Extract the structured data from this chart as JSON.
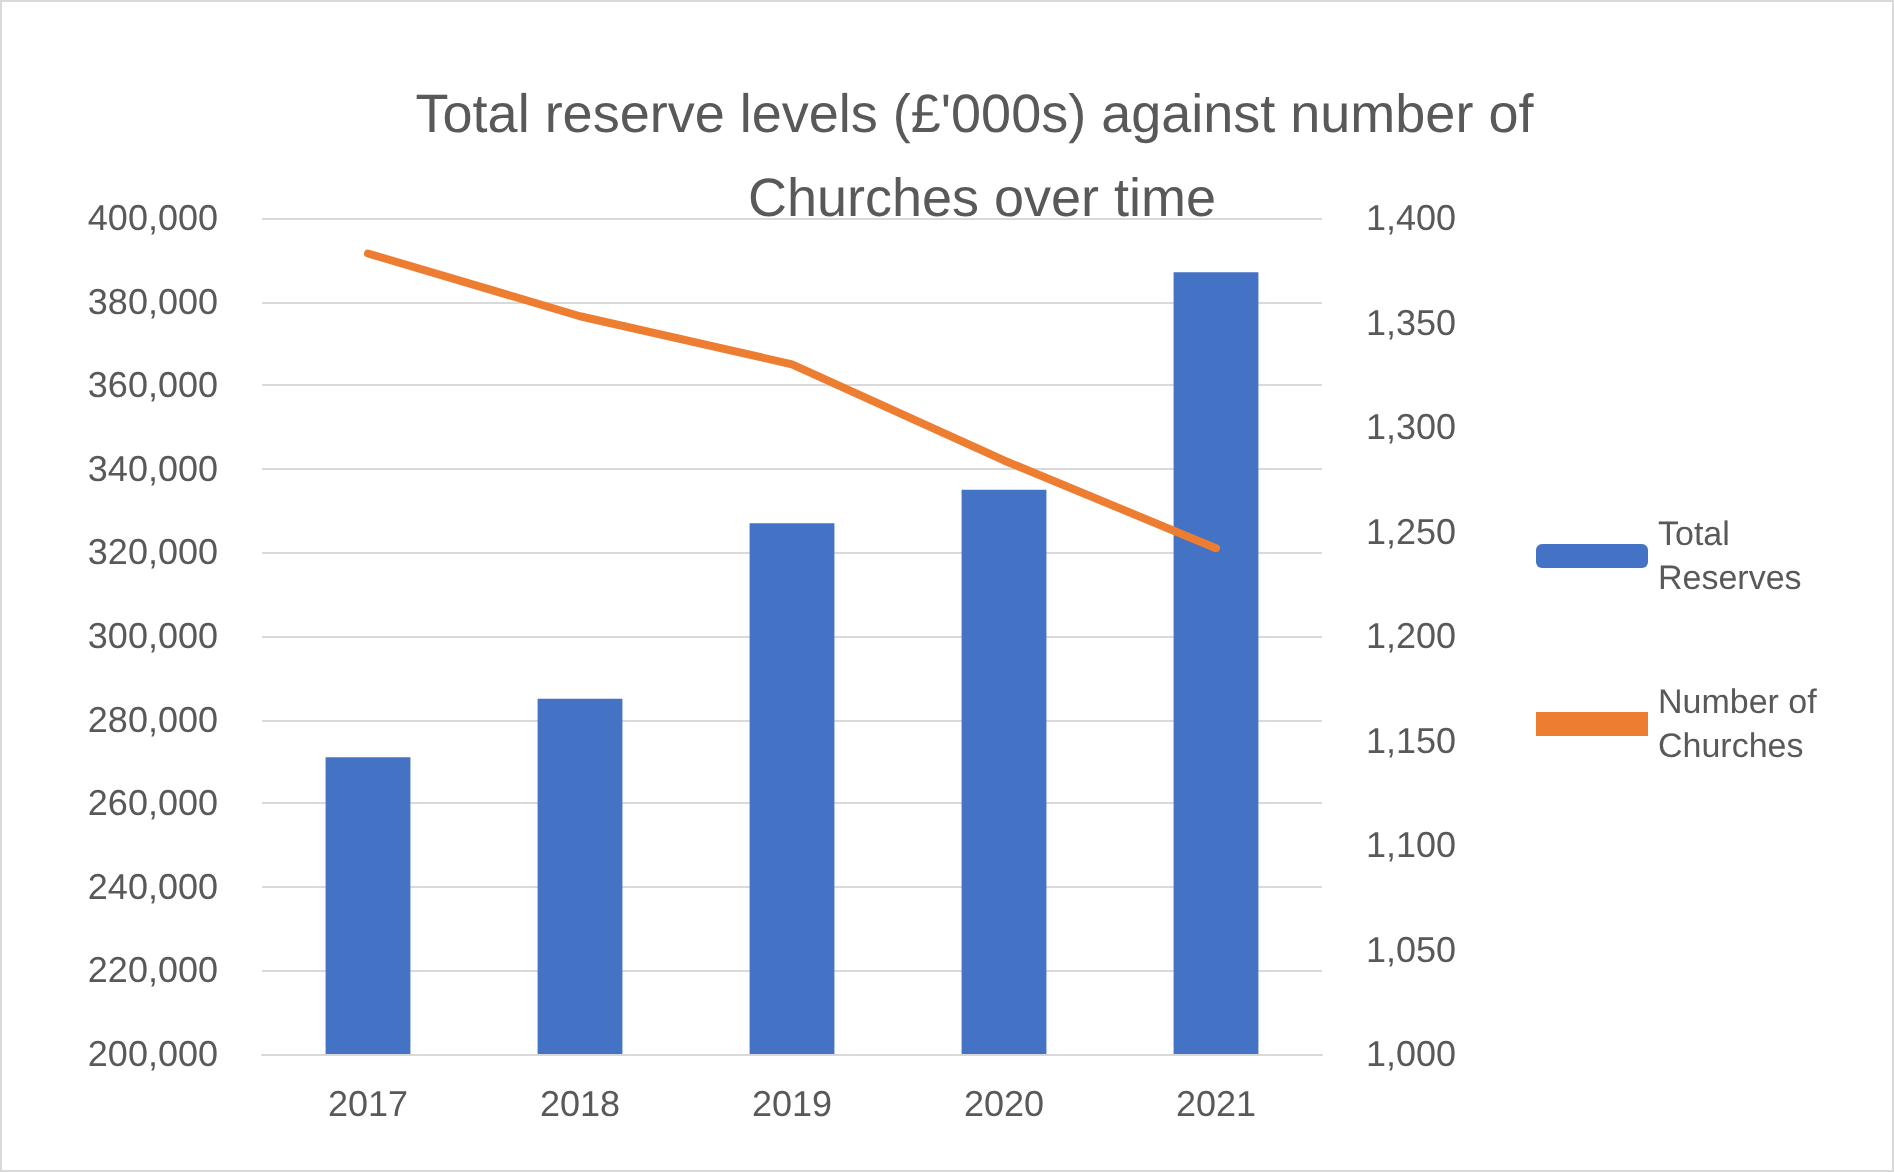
{
  "chart_data": {
    "type": "bar",
    "title": "Total reserve levels (£'000s) against number of Churches over time",
    "categories": [
      "2017",
      "2018",
      "2019",
      "2020",
      "2021"
    ],
    "series": [
      {
        "name": "Total Reserves",
        "color": "#4472c4",
        "values": [
          271000,
          285000,
          327000,
          335000,
          387000
        ]
      },
      {
        "name": "Number of Churches",
        "type": "line",
        "axis": "y2",
        "color": "#ed7d31",
        "values": [
          1383,
          1353,
          1330,
          1284,
          1242
        ]
      }
    ],
    "ylim": [
      200000,
      400000
    ],
    "yticks": [
      {
        "value": 200000,
        "label": "200,000"
      },
      {
        "value": 220000,
        "label": "220,000"
      },
      {
        "value": 240000,
        "label": "240,000"
      },
      {
        "value": 260000,
        "label": "260,000"
      },
      {
        "value": 280000,
        "label": "280,000"
      },
      {
        "value": 300000,
        "label": "300,000"
      },
      {
        "value": 320000,
        "label": "320,000"
      },
      {
        "value": 340000,
        "label": "340,000"
      },
      {
        "value": 360000,
        "label": "360,000"
      },
      {
        "value": 380000,
        "label": "380,000"
      },
      {
        "value": 400000,
        "label": "400,000"
      }
    ],
    "y2lim": [
      1000,
      1400
    ],
    "y2ticks": [
      {
        "value": 1000,
        "label": "1,000"
      },
      {
        "value": 1050,
        "label": "1,050"
      },
      {
        "value": 1100,
        "label": "1,100"
      },
      {
        "value": 1150,
        "label": "1,150"
      },
      {
        "value": 1200,
        "label": "1,200"
      },
      {
        "value": 1250,
        "label": "1,250"
      },
      {
        "value": 1300,
        "label": "1,300"
      },
      {
        "value": 1350,
        "label": "1,350"
      },
      {
        "value": 1400,
        "label": "1,400"
      }
    ],
    "grid": "y",
    "legend": "right",
    "marker": "none",
    "line_style": "solid"
  }
}
